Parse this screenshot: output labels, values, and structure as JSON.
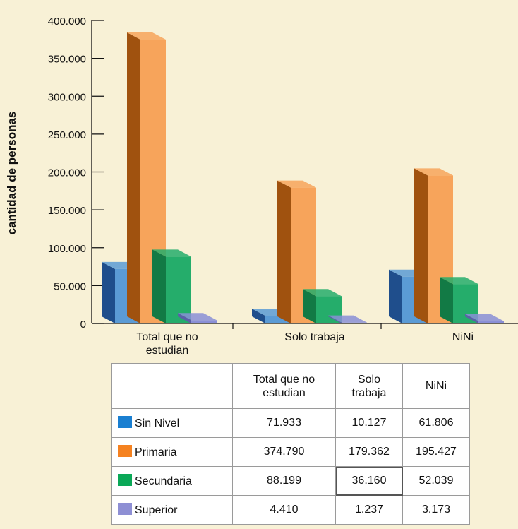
{
  "chart_data": {
    "type": "bar",
    "ylabel": "cantidad de personas",
    "ylim": [
      0,
      400000
    ],
    "yticks": [
      "0",
      "50.000",
      "100.000",
      "150.000",
      "200.000",
      "250.000",
      "300.000",
      "350.000",
      "400.000"
    ],
    "categories": [
      "Total que no estudian",
      "Solo trabaja",
      "NiNi"
    ],
    "category_tick_lines": [
      [
        "Total que no",
        "estudian"
      ],
      [
        "Solo trabaja"
      ],
      [
        "NiNi"
      ]
    ],
    "series": [
      {
        "name": "Sin Nivel",
        "values": [
          71933,
          10127,
          61806
        ],
        "color": "#5b9bd5",
        "side": "#1f4e8c"
      },
      {
        "name": "Primaria",
        "values": [
          374790,
          179362,
          195427
        ],
        "color": "#f7a45b",
        "side": "#a0520f"
      },
      {
        "name": "Secundaria",
        "values": [
          88199,
          36160,
          52039
        ],
        "color": "#25ad6b",
        "side": "#127a45"
      },
      {
        "name": "Superior",
        "values": [
          4410,
          1237,
          3173
        ],
        "color": "#8a8fd6",
        "side": "#5c5fa8"
      }
    ],
    "table": {
      "headers": [
        [
          "Total que no",
          "estudian"
        ],
        [
          "Solo",
          "trabaja"
        ],
        [
          "NiNi"
        ]
      ],
      "rows": [
        {
          "label": "Sin Nivel",
          "color": "#1a7fd1",
          "values": [
            "71.933",
            "10.127",
            "61.806"
          ]
        },
        {
          "label": "Primaria",
          "color": "#f58220",
          "values": [
            "374.790",
            "179.362",
            "195.427"
          ]
        },
        {
          "label": "Secundaria",
          "color": "#0aa857",
          "values": [
            "88.199",
            "36.160",
            "52.039"
          ]
        },
        {
          "label": "Superior",
          "color": "#8e8fd4",
          "values": [
            "4.410",
            "1.237",
            "3.173"
          ]
        }
      ]
    }
  }
}
